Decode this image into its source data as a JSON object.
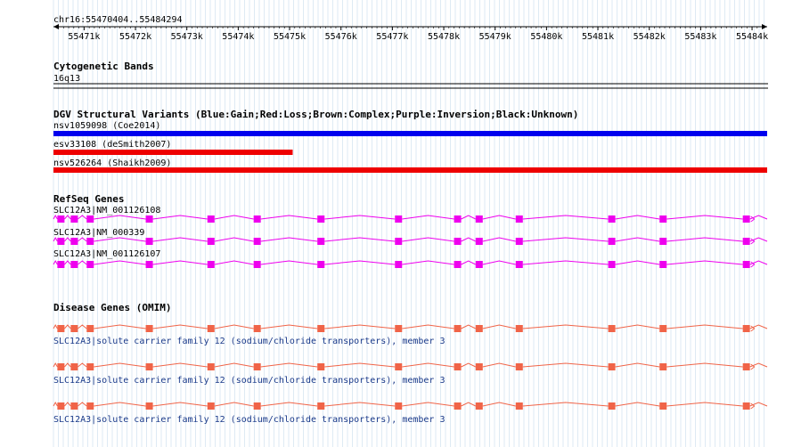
{
  "ruler": {
    "locus": "chr16:55470404..55484294",
    "start": 55470404,
    "end": 55484294,
    "ticks": [
      "55471k",
      "55472k",
      "55473k",
      "55474k",
      "55475k",
      "55476k",
      "55477k",
      "55478k",
      "55479k",
      "55480k",
      "55481k",
      "55482k",
      "55483k",
      "55484k"
    ]
  },
  "cyto": {
    "title": "Cytogenetic Bands",
    "band": "16q13"
  },
  "dgv": {
    "title": "DGV Structural Variants (Blue:Gain;Red:Loss;Brown:Complex;Purple:Inversion;Black:Unknown)",
    "items": [
      {
        "label": "nsv1059098 (Coe2014)",
        "color": "#0000ee",
        "start": 55470404,
        "end": 55484294
      },
      {
        "label": "esv33108 (deSmith2007)",
        "color": "#ee0000",
        "start": 55470404,
        "end": 55475060
      },
      {
        "label": "nsv526264 (Shaikh2009)",
        "color": "#ee0000",
        "start": 55470404,
        "end": 55484294
      }
    ]
  },
  "refseq": {
    "title": "RefSeq Genes",
    "color": "#ee00ee",
    "items": [
      {
        "label": "SLC12A3|NM_001126108"
      },
      {
        "label": "SLC12A3|NM_000339"
      },
      {
        "label": "SLC12A3|NM_001126107"
      }
    ]
  },
  "omim": {
    "title": "Disease Genes (OMIM)",
    "color": "#f06448",
    "items": [
      {
        "label": "SLC12A3|solute carrier family 12 (sodium/chloride transporters), member 3"
      },
      {
        "label": "SLC12A3|solute carrier family 12 (sodium/chloride transporters), member 3"
      },
      {
        "label": "SLC12A3|solute carrier family 12 (sodium/chloride transporters), member 3"
      }
    ]
  },
  "gene_model": {
    "exons": [
      [
        55470480,
        55470600
      ],
      [
        55470740,
        55470870
      ],
      [
        55471050,
        55471160
      ],
      [
        55472200,
        55472300
      ],
      [
        55473400,
        55473500
      ],
      [
        55474300,
        55474400
      ],
      [
        55475540,
        55475680
      ],
      [
        55477050,
        55477150
      ],
      [
        55478200,
        55478300
      ],
      [
        55478620,
        55478730
      ],
      [
        55479400,
        55479500
      ],
      [
        55481200,
        55481300
      ],
      [
        55482200,
        55482300
      ],
      [
        55483820,
        55483900
      ]
    ]
  }
}
